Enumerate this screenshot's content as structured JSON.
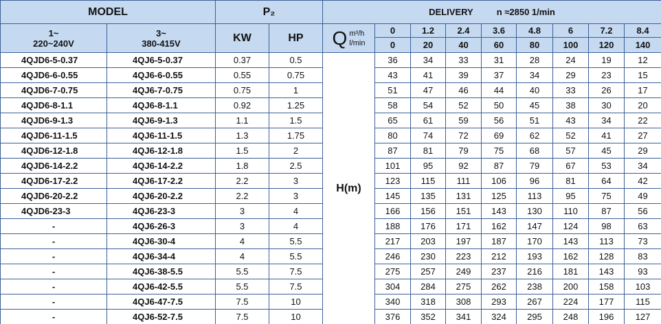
{
  "header": {
    "model": "MODEL",
    "power": "P₂",
    "delivery": "DELIVERY",
    "speed": "n ≈2850 1/min",
    "phase1": "1~",
    "phase3": "3~",
    "voltage1": "220~240V",
    "voltage3": "380-415V",
    "kw": "KW",
    "hp": "HP",
    "q": "Q",
    "q_unit1": "m³/h",
    "q_unit2": "l/min",
    "head": "H(m)"
  },
  "flow_m3h": [
    0,
    1.2,
    2.4,
    3.6,
    4.8,
    6,
    7.2,
    8.4
  ],
  "flow_lmin": [
    0,
    20,
    40,
    60,
    80,
    100,
    120,
    140
  ],
  "rows": [
    {
      "model_1ph": "4QJD6-5-0.37",
      "model_3ph": "4QJ6-5-0.37",
      "kw": 0.37,
      "hp": 0.5,
      "head": [
        36,
        34,
        33,
        31,
        28,
        24,
        19,
        12
      ]
    },
    {
      "model_1ph": "4QJD6-6-0.55",
      "model_3ph": "4QJ6-6-0.55",
      "kw": 0.55,
      "hp": 0.75,
      "head": [
        43,
        41,
        39,
        37,
        34,
        29,
        23,
        15
      ]
    },
    {
      "model_1ph": "4QJD6-7-0.75",
      "model_3ph": "4QJ6-7-0.75",
      "kw": 0.75,
      "hp": 1,
      "head": [
        51,
        47,
        46,
        44,
        40,
        33,
        26,
        17
      ]
    },
    {
      "model_1ph": "4QJD6-8-1.1",
      "model_3ph": "4QJ6-8-1.1",
      "kw": 0.92,
      "hp": 1.25,
      "head": [
        58,
        54,
        52,
        50,
        45,
        38,
        30,
        20
      ]
    },
    {
      "model_1ph": "4QJD6-9-1.3",
      "model_3ph": "4QJ6-9-1.3",
      "kw": 1.1,
      "hp": 1.5,
      "head": [
        65,
        61,
        59,
        56,
        51,
        43,
        34,
        22
      ]
    },
    {
      "model_1ph": "4QJD6-11-1.5",
      "model_3ph": "4QJ6-11-1.5",
      "kw": 1.3,
      "hp": 1.75,
      "head": [
        80,
        74,
        72,
        69,
        62,
        52,
        41,
        27
      ]
    },
    {
      "model_1ph": "4QJD6-12-1.8",
      "model_3ph": "4QJ6-12-1.8",
      "kw": 1.5,
      "hp": 2,
      "head": [
        87,
        81,
        79,
        75,
        68,
        57,
        45,
        29
      ]
    },
    {
      "model_1ph": "4QJD6-14-2.2",
      "model_3ph": "4QJ6-14-2.2",
      "kw": 1.8,
      "hp": 2.5,
      "head": [
        101,
        95,
        92,
        87,
        79,
        67,
        53,
        34
      ]
    },
    {
      "model_1ph": "4QJD6-17-2.2",
      "model_3ph": "4QJ6-17-2.2",
      "kw": 2.2,
      "hp": 3,
      "head": [
        123,
        115,
        111,
        106,
        96,
        81,
        64,
        42
      ]
    },
    {
      "model_1ph": "4QJD6-20-2.2",
      "model_3ph": "4QJ6-20-2.2",
      "kw": 2.2,
      "hp": 3,
      "head": [
        145,
        135,
        131,
        125,
        113,
        95,
        75,
        49
      ]
    },
    {
      "model_1ph": "4QJD6-23-3",
      "model_3ph": "4QJ6-23-3",
      "kw": 3,
      "hp": 4,
      "head": [
        166,
        156,
        151,
        143,
        130,
        110,
        87,
        56
      ]
    },
    {
      "model_1ph": "-",
      "model_3ph": "4QJ6-26-3",
      "kw": 3,
      "hp": 4,
      "head": [
        188,
        176,
        171,
        162,
        147,
        124,
        98,
        63
      ]
    },
    {
      "model_1ph": "-",
      "model_3ph": "4QJ6-30-4",
      "kw": 4,
      "hp": 5.5,
      "head": [
        217,
        203,
        197,
        187,
        170,
        143,
        113,
        73
      ]
    },
    {
      "model_1ph": "-",
      "model_3ph": "4QJ6-34-4",
      "kw": 4,
      "hp": 5.5,
      "head": [
        246,
        230,
        223,
        212,
        193,
        162,
        128,
        83
      ]
    },
    {
      "model_1ph": "-",
      "model_3ph": "4QJ6-38-5.5",
      "kw": 5.5,
      "hp": 7.5,
      "head": [
        275,
        257,
        249,
        237,
        216,
        181,
        143,
        93
      ]
    },
    {
      "model_1ph": "-",
      "model_3ph": "4QJ6-42-5.5",
      "kw": 5.5,
      "hp": 7.5,
      "head": [
        304,
        284,
        275,
        262,
        238,
        200,
        158,
        103
      ]
    },
    {
      "model_1ph": "-",
      "model_3ph": "4QJ6-47-7.5",
      "kw": 7.5,
      "hp": 10,
      "head": [
        340,
        318,
        308,
        293,
        267,
        224,
        177,
        115
      ]
    },
    {
      "model_1ph": "-",
      "model_3ph": "4QJ6-52-7.5",
      "kw": 7.5,
      "hp": 10,
      "head": [
        376,
        352,
        341,
        324,
        295,
        248,
        196,
        127
      ]
    }
  ]
}
